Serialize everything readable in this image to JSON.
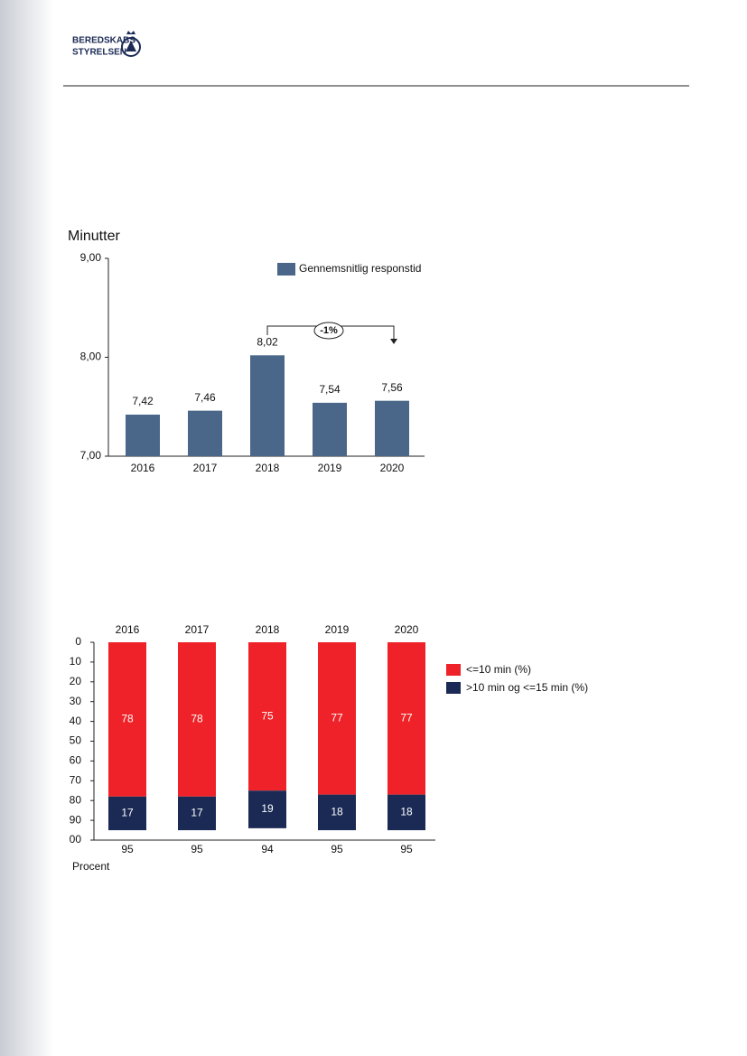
{
  "header": {
    "logo_line1": "BEREDSKABS",
    "logo_line2": "STYRELSEN"
  },
  "chart_data": [
    {
      "type": "bar",
      "y_label": "Minutter",
      "categories": [
        "2016",
        "2017",
        "2018",
        "2019",
        "2020"
      ],
      "series": [
        {
          "name": "Gennemsnitlig responstid",
          "color": "#4a6688",
          "values": [
            7.42,
            7.46,
            8.02,
            7.54,
            7.56
          ],
          "value_labels": [
            "7,42",
            "7,46",
            "8,02",
            "7,54",
            "7,56"
          ]
        }
      ],
      "ylim": [
        7,
        9
      ],
      "yticks": [
        {
          "value": 7,
          "label": "7,00"
        },
        {
          "value": 8,
          "label": "8,00"
        },
        {
          "value": 9,
          "label": "9,00"
        }
      ],
      "annotation": "-1%"
    },
    {
      "type": "stacked_bar",
      "x_label": "Procent",
      "categories": [
        "2016",
        "2017",
        "2018",
        "2019",
        "2020"
      ],
      "series": [
        {
          "name": "<=10 min (%)",
          "color": "#ee2228",
          "values": [
            78,
            78,
            75,
            77,
            77
          ]
        },
        {
          "name": ">10 min og <=15 min (%)",
          "color": "#1b2a55",
          "values": [
            17,
            17,
            19,
            18,
            18
          ]
        }
      ],
      "totals": [
        95,
        95,
        94,
        95,
        95
      ],
      "ylim": [
        100,
        0
      ],
      "yticks": [
        0,
        10,
        20,
        30,
        40,
        50,
        60,
        70,
        80,
        90,
        {
          "value": 100,
          "label": "00"
        }
      ]
    }
  ]
}
